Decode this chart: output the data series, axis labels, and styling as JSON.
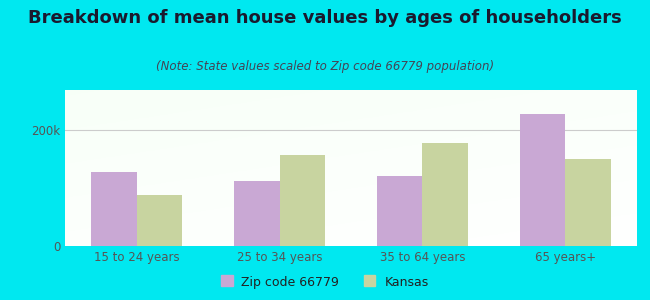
{
  "title": "Breakdown of mean house values by ages of householders",
  "subtitle": "(Note: State values scaled to Zip code 66779 population)",
  "categories": [
    "15 to 24 years",
    "25 to 34 years",
    "35 to 64 years",
    "65 years+"
  ],
  "zip_values": [
    128000,
    112000,
    122000,
    228000
  ],
  "kansas_values": [
    88000,
    158000,
    178000,
    150000
  ],
  "zip_color": "#c9a8d4",
  "kansas_color": "#c8d4a0",
  "background_outer": "#00e8f0",
  "ylim": [
    0,
    270000
  ],
  "yticks": [
    0,
    200000
  ],
  "ytick_labels": [
    "0",
    "200k"
  ],
  "legend_zip_label": "Zip code 66779",
  "legend_kansas_label": "Kansas",
  "bar_width": 0.32,
  "title_fontsize": 13,
  "subtitle_fontsize": 8.5,
  "tick_fontsize": 8.5,
  "legend_fontsize": 9,
  "text_color": "#1a1a2e"
}
